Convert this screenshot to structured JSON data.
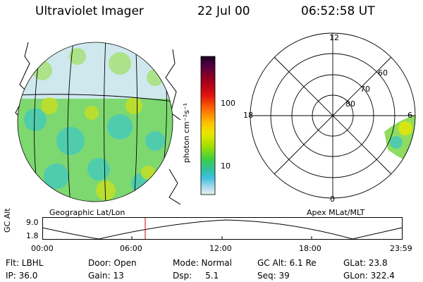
{
  "header": {
    "instrument": "Ultraviolet Imager",
    "date": "22 Jul 00",
    "time": "06:52:58 UT"
  },
  "left_panel": {
    "caption": "Geographic Lat/Lon"
  },
  "right_panel": {
    "caption": "Apex MLat/MLT",
    "mlt_labels": {
      "top": "12",
      "left": "18",
      "right": "6",
      "bottom": "0"
    },
    "lat_rings": [
      "60",
      "70",
      "80"
    ]
  },
  "colorbar": {
    "unit_label": "photon cm⁻²s⁻¹",
    "ticks": [
      "100",
      "10"
    ],
    "colors": [
      "#1a0026",
      "#5a0040",
      "#a0001a",
      "#e01010",
      "#ff6a00",
      "#ffc000",
      "#e8e800",
      "#a0e000",
      "#40d040",
      "#30c0a0",
      "#40c0e0",
      "#a0d8e8",
      "#e8f0f0"
    ]
  },
  "timeline": {
    "axis_label": "GC Alt",
    "y_top": "9.0",
    "y_bottom": "1.8",
    "x_ticks": [
      "00:00",
      "06:00",
      "12:00",
      "18:00",
      "23:59"
    ],
    "marker_color": "#cc0000"
  },
  "info": {
    "flt": "Flt: LBHL",
    "door": "Door: Open",
    "mode": "Mode: Normal",
    "gc_alt": "GC Alt: 6.1 Re",
    "glat": "GLat:  23.8",
    "ip": "IP: 36.0",
    "gain": "Gain: 13",
    "dsp": "Dsp:     5.1",
    "seq": "Seq: 39",
    "glon": "GLon: 322.4"
  }
}
